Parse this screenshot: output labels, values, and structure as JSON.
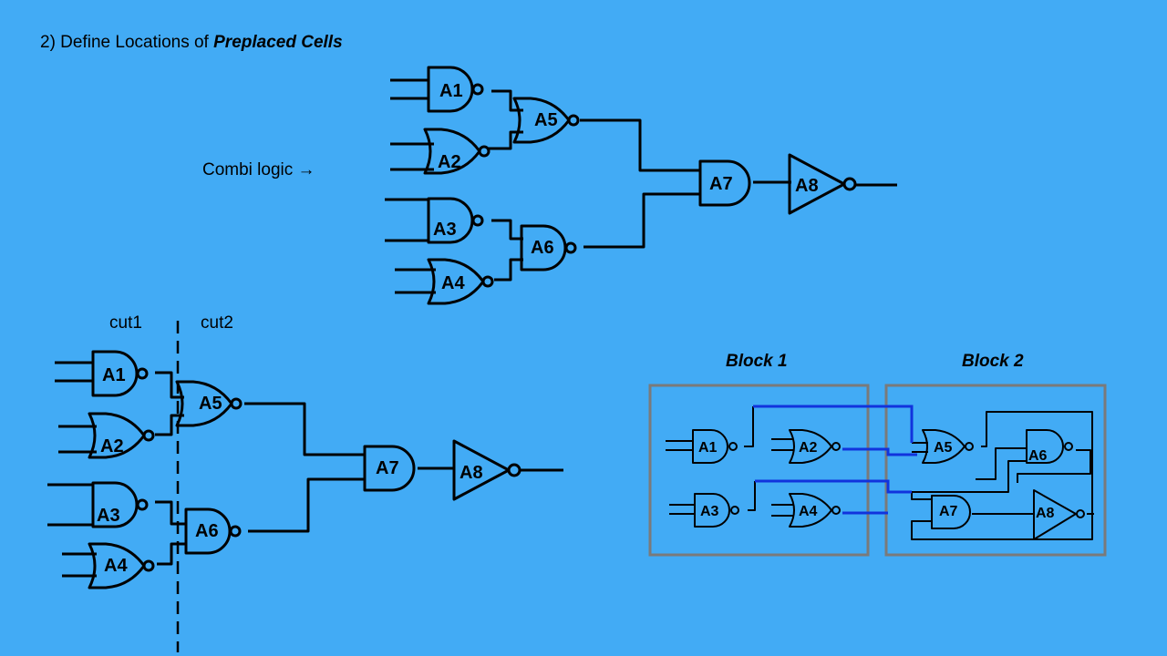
{
  "title": {
    "prefix": "2) Define Locations of ",
    "emphasis": "Preplaced Cells"
  },
  "combi_label": "Combi logic →",
  "cut_labels": {
    "cut1": "cut1",
    "cut2": "cut2"
  },
  "block_labels": {
    "block1": "Block 1",
    "block2": "Block 2"
  },
  "gates": {
    "a1": "A1",
    "a2": "A2",
    "a3": "A3",
    "a4": "A4",
    "a5": "A5",
    "a6": "A6",
    "a7": "A7",
    "a8": "A8"
  }
}
